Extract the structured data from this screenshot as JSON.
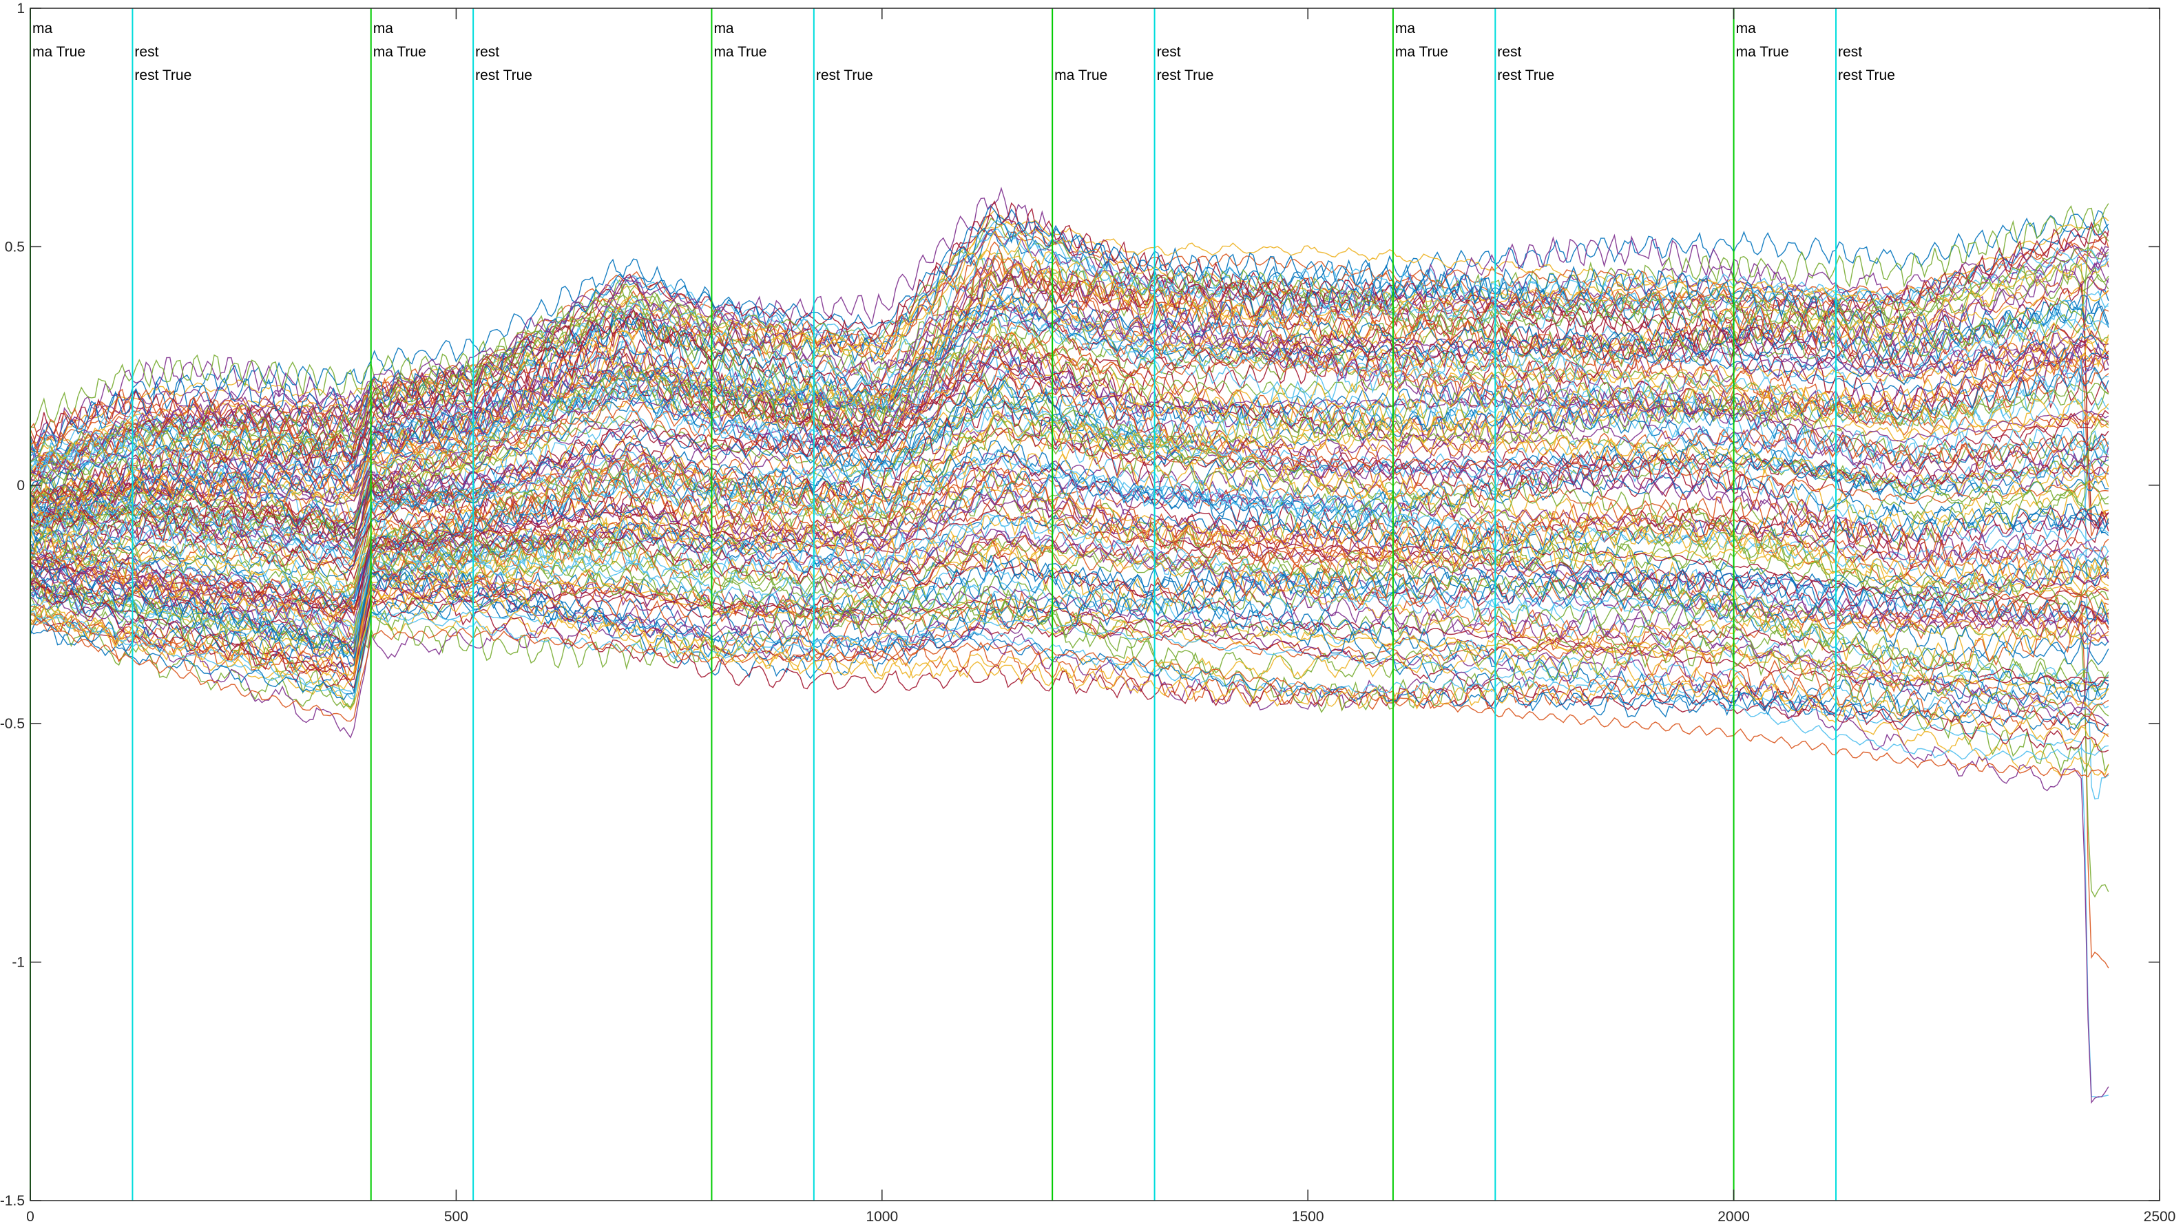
{
  "chart_data": {
    "type": "line",
    "title": "",
    "xlabel": "",
    "ylabel": "",
    "xlim": [
      0,
      2500
    ],
    "ylim": [
      -1.5,
      1
    ],
    "xticks": [
      0,
      500,
      1000,
      1500,
      2000,
      2500
    ],
    "yticks": [
      -1.5,
      -1,
      -0.5,
      0,
      0.5,
      1
    ],
    "x_range_of_series": [
      0,
      2440
    ],
    "num_series_approx": 150,
    "series_envelope": [
      {
        "x": 0,
        "min": -0.28,
        "max": 0.08
      },
      {
        "x": 120,
        "min": -0.36,
        "max": 0.18
      },
      {
        "x": 250,
        "min": -0.42,
        "max": 0.19
      },
      {
        "x": 380,
        "min": -0.48,
        "max": 0.17
      },
      {
        "x": 400,
        "min": -0.3,
        "max": 0.2
      },
      {
        "x": 520,
        "min": -0.3,
        "max": 0.24
      },
      {
        "x": 700,
        "min": -0.35,
        "max": 0.44
      },
      {
        "x": 800,
        "min": -0.38,
        "max": 0.38
      },
      {
        "x": 1000,
        "min": -0.38,
        "max": 0.32
      },
      {
        "x": 1130,
        "min": -0.37,
        "max": 0.58
      },
      {
        "x": 1300,
        "min": -0.4,
        "max": 0.48
      },
      {
        "x": 1500,
        "min": -0.44,
        "max": 0.47
      },
      {
        "x": 1700,
        "min": -0.47,
        "max": 0.46
      },
      {
        "x": 2000,
        "min": -0.5,
        "max": 0.45
      },
      {
        "x": 2200,
        "min": -0.56,
        "max": 0.42
      },
      {
        "x": 2400,
        "min": -0.6,
        "max": 0.54
      },
      {
        "x": 2420,
        "min": -1.25,
        "max": 0.71
      },
      {
        "x": 2440,
        "min": -0.75,
        "max": 0.64
      }
    ],
    "series_colors": [
      "#0072BD",
      "#D95319",
      "#EDB120",
      "#7E2F8E",
      "#77AC30",
      "#4DBEEE",
      "#A2142F"
    ],
    "events": [
      {
        "x": 0,
        "color": "#00cc00",
        "labels": [
          "ma",
          "ma True"
        ],
        "top_label_row": 0
      },
      {
        "x": 120,
        "color": "#00dddd",
        "labels": [
          "rest",
          "rest True"
        ],
        "top_label_row": 1
      },
      {
        "x": 400,
        "color": "#00cc00",
        "labels": [
          "ma",
          "ma True"
        ],
        "top_label_row": 0
      },
      {
        "x": 520,
        "color": "#00dddd",
        "labels": [
          "rest",
          "rest True"
        ],
        "top_label_row": 1
      },
      {
        "x": 800,
        "color": "#00cc00",
        "labels": [
          "ma",
          "ma True"
        ],
        "top_label_row": 0
      },
      {
        "x": 920,
        "color": "#00dddd",
        "labels": [
          "rest True"
        ],
        "top_label_row": 2
      },
      {
        "x": 1200,
        "color": "#00cc00",
        "labels": [
          "ma True"
        ],
        "top_label_row": 2
      },
      {
        "x": 1320,
        "color": "#00dddd",
        "labels": [
          "rest",
          "rest True"
        ],
        "top_label_row": 1
      },
      {
        "x": 1600,
        "color": "#00cc00",
        "labels": [
          "ma",
          "ma True"
        ],
        "top_label_row": 0
      },
      {
        "x": 1720,
        "color": "#00dddd",
        "labels": [
          "rest",
          "rest True"
        ],
        "top_label_row": 1
      },
      {
        "x": 2000,
        "color": "#00cc00",
        "labels": [
          "ma",
          "ma True"
        ],
        "top_label_row": 0
      },
      {
        "x": 2120,
        "color": "#00dddd",
        "labels": [
          "rest",
          "rest True"
        ],
        "top_label_row": 1
      }
    ]
  }
}
